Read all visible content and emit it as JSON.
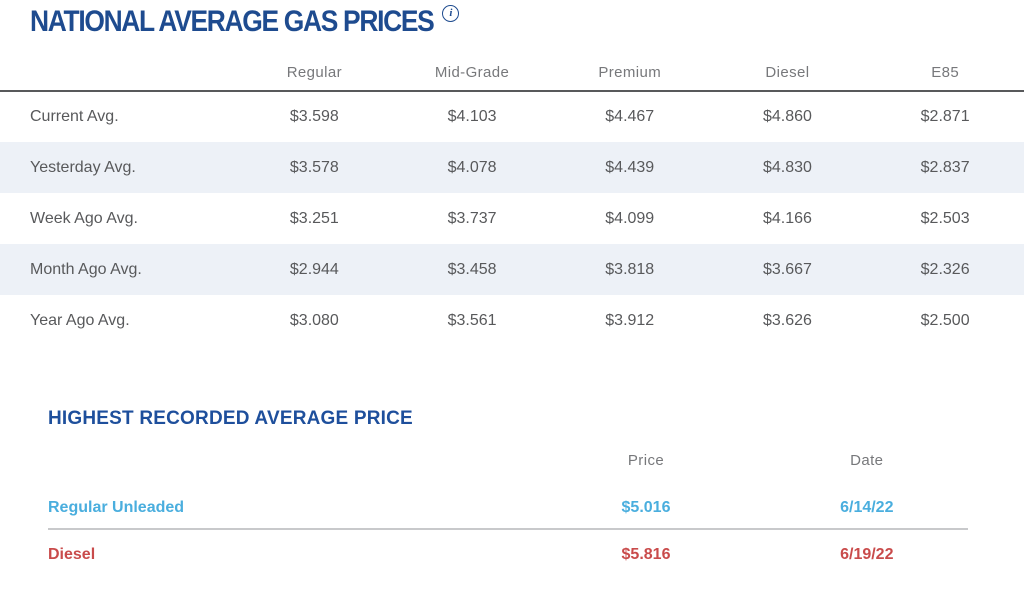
{
  "page": {
    "title": "NATIONAL AVERAGE GAS PRICES"
  },
  "icons": {
    "info_icon": "i"
  },
  "colors": {
    "title_blue": "#1e4b8f",
    "section_heading_blue": "#1e4f9c",
    "table_text_gray": "#58595b",
    "header_gray": "#77787b",
    "alt_row_bg": "#edf1f7",
    "regular_unleaded_blue": "#4aaede",
    "diesel_red": "#c94b4b"
  },
  "gas_table": {
    "columns": [
      "Regular",
      "Mid-Grade",
      "Premium",
      "Diesel",
      "E85"
    ],
    "rows": [
      {
        "label": "Current Avg.",
        "values": [
          "$3.598",
          "$4.103",
          "$4.467",
          "$4.860",
          "$2.871"
        ]
      },
      {
        "label": "Yesterday Avg.",
        "values": [
          "$3.578",
          "$4.078",
          "$4.439",
          "$4.830",
          "$2.837"
        ]
      },
      {
        "label": "Week Ago Avg.",
        "values": [
          "$3.251",
          "$3.737",
          "$4.099",
          "$4.166",
          "$2.503"
        ]
      },
      {
        "label": "Month Ago Avg.",
        "values": [
          "$2.944",
          "$3.458",
          "$3.818",
          "$3.667",
          "$2.326"
        ]
      },
      {
        "label": "Year Ago Avg.",
        "values": [
          "$3.080",
          "$3.561",
          "$3.912",
          "$3.626",
          "$2.500"
        ]
      }
    ]
  },
  "highest": {
    "title": "HIGHEST RECORDED AVERAGE PRICE",
    "columns": [
      "Price",
      "Date"
    ],
    "rows": [
      {
        "label": "Regular Unleaded",
        "price": "$5.016",
        "date": "6/14/22"
      },
      {
        "label": "Diesel",
        "price": "$5.816",
        "date": "6/19/22"
      }
    ]
  }
}
